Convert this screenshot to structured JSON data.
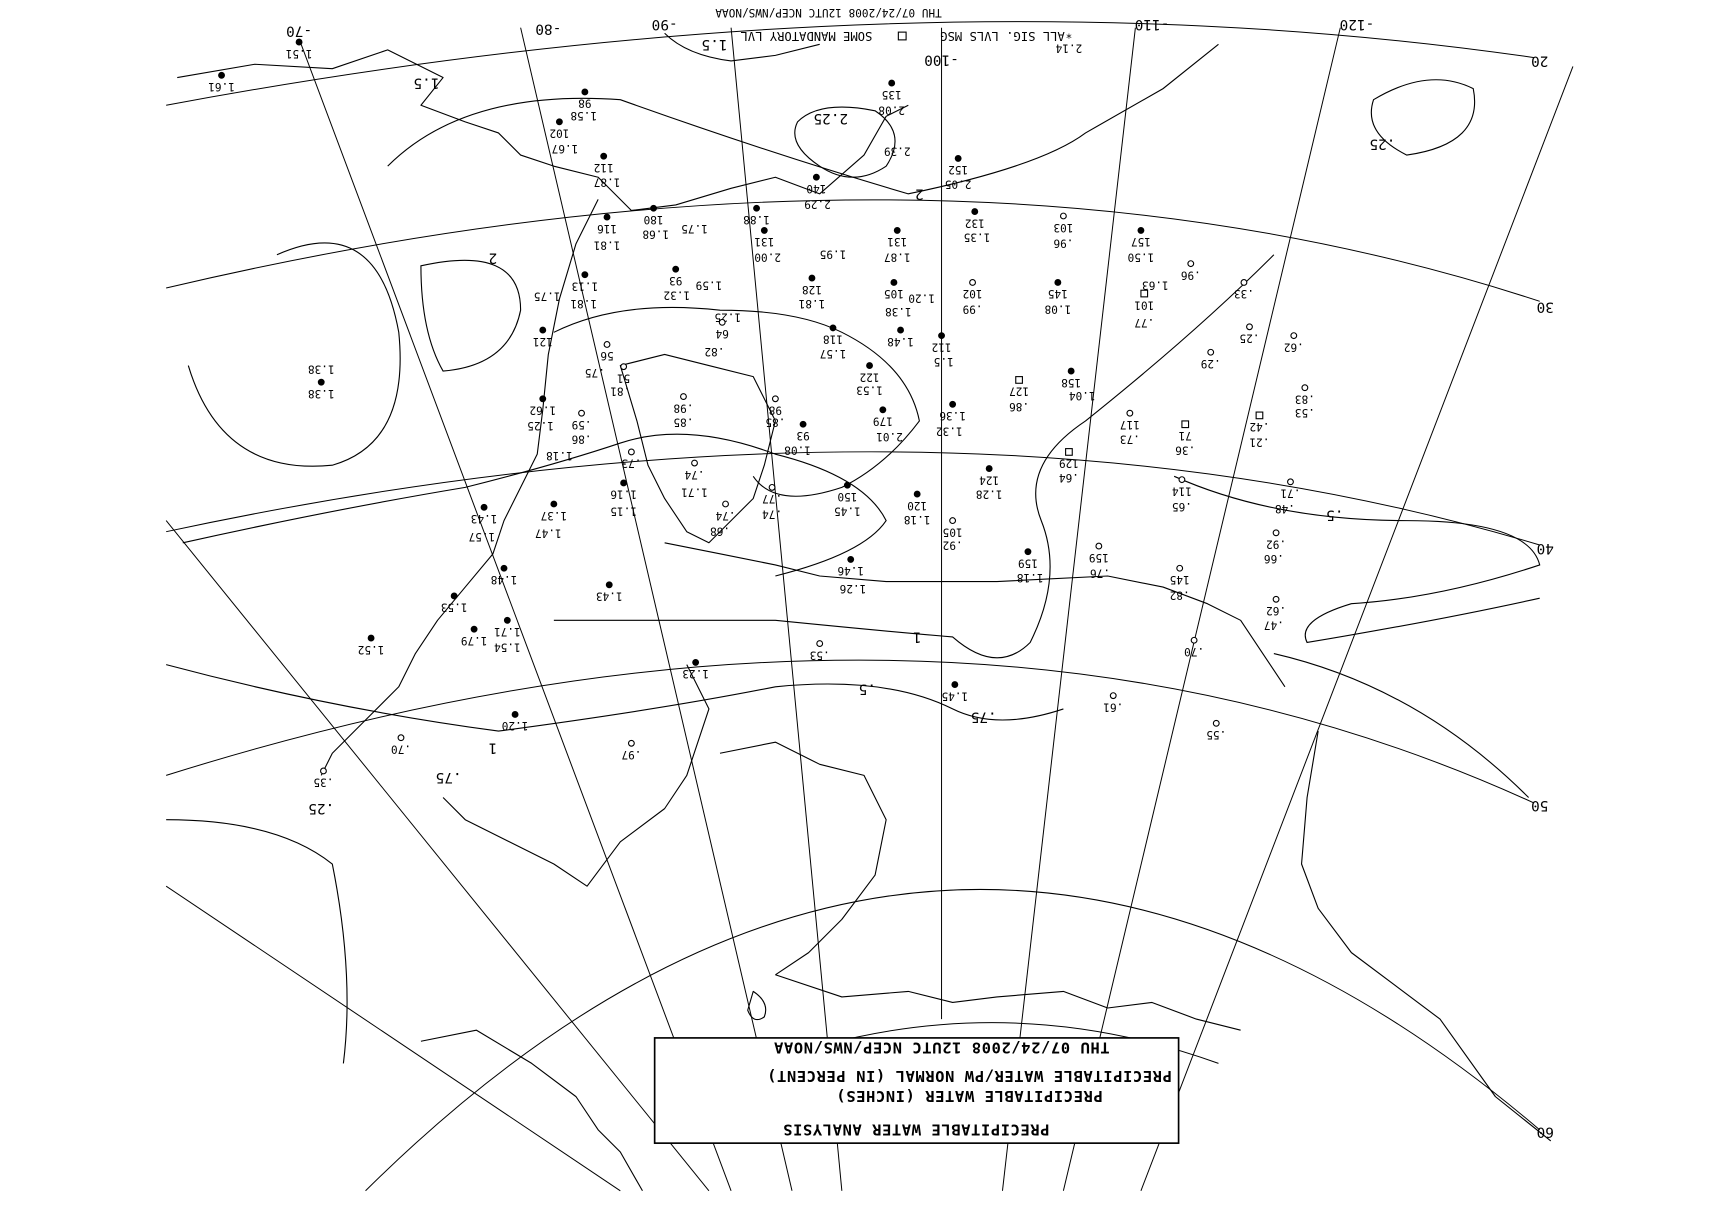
{
  "map": {
    "orientation": "rotated 180 degrees",
    "line_color": "#000000",
    "background": "#ffffff",
    "header": {
      "datetime": "THU 07/24/2008 12UTC  NCEP/NWS/NOAA",
      "legend_all_sig": "ALL SIG. LVLS MSG",
      "legend_some_mand": "SOME MANDATORY LVL"
    },
    "title_box": {
      "line1": "PRECIPITABLE WATER ANALYSIS",
      "line2": "PRECIPITABLE WATER (INCHES)",
      "line3": "PRECIPITABLE WATER/PW NORMAL (IN PERCENT)",
      "line4": "THU 07/24/2008 12UTC NCEP/NWS/NOAA"
    },
    "latitude_labels": [
      "20",
      "30",
      "40",
      "50",
      "60"
    ],
    "longitude_labels": [
      "-70",
      "-80",
      "-90",
      "-100",
      "-110",
      "-120"
    ],
    "contour_labels": [
      "2",
      "2",
      "2.25",
      "1.5",
      "1.5",
      "1",
      "1",
      ".75",
      ".75",
      ".5",
      ".5",
      ".25",
      ".25"
    ],
    "station_values": [
      "1.61",
      "1.51",
      "98",
      "1.58",
      "102",
      "1.67",
      "112",
      "1.87",
      "116",
      "1.81",
      "180",
      "1.68",
      "1.75",
      "1.88",
      "131",
      "2.00",
      "140",
      "2.29",
      "1.95",
      "135",
      "2.08",
      "2.39",
      "152",
      "2.05",
      "132",
      "1.35",
      "131",
      "1.87",
      "103",
      ".96",
      "157",
      "1.50",
      "1.63",
      ".96",
      "101",
      ".77",
      ".33",
      ".25",
      ".29",
      ".62",
      "93",
      "1.59",
      "1.32",
      "128",
      "1.81",
      "105",
      "1.20",
      "1.38",
      "102",
      ".99",
      "145",
      "1.08",
      "1.13",
      "1.81",
      "1.75",
      "1.25",
      "64",
      ".82",
      "118",
      "1.57",
      "1.48",
      "112",
      "1.5",
      "1.38",
      "121",
      "56",
      "51",
      ".75",
      ".81",
      "122",
      "1.53",
      "127",
      ".86",
      "158",
      "1.04",
      "1.36",
      "1.32",
      "179",
      "2.01",
      ".98",
      ".85",
      "98",
      ".85",
      "93",
      "1.08",
      "117",
      ".73",
      "71",
      ".36",
      ".42",
      ".21",
      ".83",
      ".53",
      "1.62",
      ".59",
      ".86",
      "1.25",
      "1.18",
      ".73",
      "129",
      ".64",
      "124",
      "1.28",
      "114",
      ".65",
      ".71",
      ".48",
      ".74",
      "1.16",
      "1.15",
      "1.71",
      ".74",
      ".68",
      ".77",
      ".74",
      "150",
      "1.45",
      "120",
      "1.18",
      "105",
      ".92",
      "1.37",
      "1.47",
      "1.43",
      "1.57",
      "1.48",
      ".92",
      ".66",
      "159",
      "1.18",
      "159",
      ".76",
      "145",
      ".82",
      "1.46",
      "1.26",
      "1.43",
      "1.53",
      "1.79",
      "1.71",
      "1.54",
      "1.52",
      ".62",
      ".47",
      ".70",
      ".53",
      "1.23",
      "1.45",
      ".61",
      ".55",
      "1.20",
      ".97",
      ".70",
      ".35",
      "2.14",
      "1.38"
    ]
  }
}
